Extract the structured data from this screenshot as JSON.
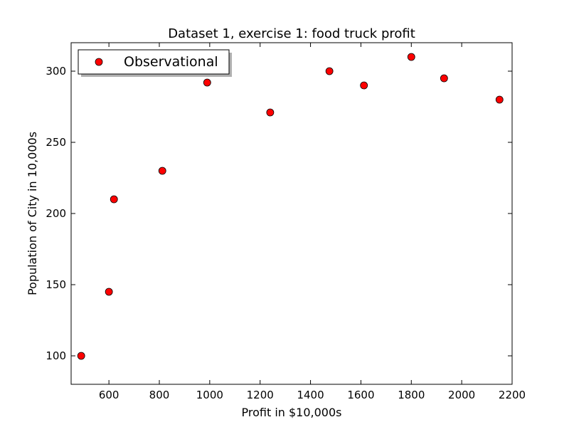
{
  "chart_data": {
    "type": "scatter",
    "title": "Dataset 1, exercise 1: food truck profit",
    "xlabel": "Profit in $10,000s",
    "ylabel": "Population of City in 10,000s",
    "xlim": [
      450,
      2200
    ],
    "ylim": [
      80,
      320
    ],
    "xticks": [
      600,
      800,
      1000,
      1200,
      1400,
      1600,
      1800,
      2000,
      2200
    ],
    "yticks": [
      100,
      150,
      200,
      250,
      300
    ],
    "grid": false,
    "legend": {
      "placement": "top-left",
      "entries": [
        "Observational"
      ]
    },
    "series": [
      {
        "name": "Observational",
        "color": "#ff0000",
        "marker": "circle",
        "points": [
          {
            "x": 490,
            "y": 100
          },
          {
            "x": 600,
            "y": 145
          },
          {
            "x": 620,
            "y": 210
          },
          {
            "x": 812,
            "y": 230
          },
          {
            "x": 990,
            "y": 292
          },
          {
            "x": 1240,
            "y": 271
          },
          {
            "x": 1475,
            "y": 300
          },
          {
            "x": 1612,
            "y": 290
          },
          {
            "x": 1800,
            "y": 310
          },
          {
            "x": 1930,
            "y": 295
          },
          {
            "x": 2150,
            "y": 280
          }
        ]
      }
    ]
  }
}
